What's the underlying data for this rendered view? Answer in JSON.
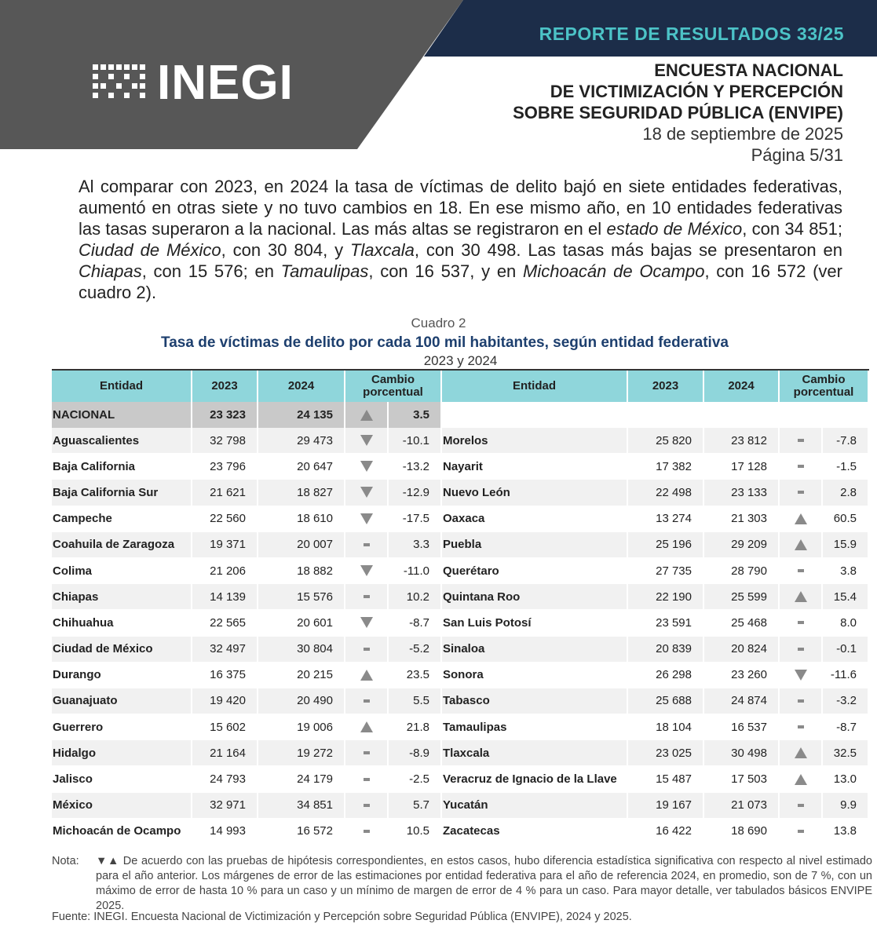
{
  "header": {
    "report": "REPORTE DE RESULTADOS 33/25",
    "logo": "INEGI",
    "survey_lines": [
      "ENCUESTA NACIONAL",
      "DE VICTIMIZACIÓN Y PERCEPCIÓN",
      "SOBRE SEGURIDAD PÚBLICA (ENVIPE)"
    ],
    "date": "18 de septiembre de 2025",
    "page": "Página 5/31"
  },
  "paragraph": {
    "segments": [
      {
        "text": "Al comparar con 2023, en 2024 la tasa de víctimas de delito bajó en siete entidades federativas, aumentó en otras siete y no tuvo cambios en 18. En ese mismo año, en 10 entidades federativas las tasas superaron a la nacional. Las más altas se registraron en el ",
        "italic": false
      },
      {
        "text": "estado de México",
        "italic": true
      },
      {
        "text": ", con 34 851; ",
        "italic": false
      },
      {
        "text": "Ciudad de México",
        "italic": true
      },
      {
        "text": ", con 30 804, y ",
        "italic": false
      },
      {
        "text": "Tlaxcala",
        "italic": true
      },
      {
        "text": ", con 30 498. Las tasas más bajas se presentaron en ",
        "italic": false
      },
      {
        "text": "Chiapas",
        "italic": true
      },
      {
        "text": ", con 15 576; en ",
        "italic": false
      },
      {
        "text": "Tamaulipas",
        "italic": true
      },
      {
        "text": ", con 16 537, y en ",
        "italic": false
      },
      {
        "text": "Michoacán de Ocampo",
        "italic": true
      },
      {
        "text": ", con 16 572 (ver cuadro 2).",
        "italic": false
      }
    ]
  },
  "table": {
    "caption": "Cuadro 2",
    "title": "Tasa de víctimas de delito por cada 100 mil habitantes, según entidad federativa",
    "subtitle": "2023 y 2024",
    "headers": [
      "Entidad",
      "2023",
      "2024",
      "Cambio porcentual"
    ],
    "national": {
      "entity": "NACIONAL",
      "y2023": "23 323",
      "y2024": "24 135",
      "trend": "up",
      "change": "3.5"
    },
    "left_rows": [
      {
        "entity": "Aguascalientes",
        "y2023": "32 798",
        "y2024": "29 473",
        "trend": "down",
        "change": "-10.1"
      },
      {
        "entity": "Baja California",
        "y2023": "23 796",
        "y2024": "20 647",
        "trend": "down",
        "change": "-13.2"
      },
      {
        "entity": "Baja California Sur",
        "y2023": "21 621",
        "y2024": "18 827",
        "trend": "down",
        "change": "-12.9"
      },
      {
        "entity": "Campeche",
        "y2023": "22 560",
        "y2024": "18 610",
        "trend": "down",
        "change": "-17.5"
      },
      {
        "entity": "Coahuila de Zaragoza",
        "y2023": "19 371",
        "y2024": "20 007",
        "trend": "same",
        "change": "3.3"
      },
      {
        "entity": "Colima",
        "y2023": "21 206",
        "y2024": "18 882",
        "trend": "down",
        "change": "-11.0"
      },
      {
        "entity": "Chiapas",
        "y2023": "14 139",
        "y2024": "15 576",
        "trend": "same",
        "change": "10.2"
      },
      {
        "entity": "Chihuahua",
        "y2023": "22 565",
        "y2024": "20 601",
        "trend": "down",
        "change": "-8.7"
      },
      {
        "entity": "Ciudad de México",
        "y2023": "32 497",
        "y2024": "30 804",
        "trend": "same",
        "change": "-5.2"
      },
      {
        "entity": "Durango",
        "y2023": "16 375",
        "y2024": "20 215",
        "trend": "up",
        "change": "23.5"
      },
      {
        "entity": "Guanajuato",
        "y2023": "19 420",
        "y2024": "20 490",
        "trend": "same",
        "change": "5.5"
      },
      {
        "entity": "Guerrero",
        "y2023": "15 602",
        "y2024": "19 006",
        "trend": "up",
        "change": "21.8"
      },
      {
        "entity": "Hidalgo",
        "y2023": "21 164",
        "y2024": "19 272",
        "trend": "same",
        "change": "-8.9"
      },
      {
        "entity": "Jalisco",
        "y2023": "24 793",
        "y2024": "24 179",
        "trend": "same",
        "change": "-2.5"
      },
      {
        "entity": "México",
        "y2023": "32 971",
        "y2024": "34 851",
        "trend": "same",
        "change": "5.7"
      },
      {
        "entity": "Michoacán de Ocampo",
        "y2023": "14 993",
        "y2024": "16 572",
        "trend": "same",
        "change": "10.5"
      }
    ],
    "right_rows": [
      {
        "entity": "Morelos",
        "y2023": "25 820",
        "y2024": "23 812",
        "trend": "same",
        "change": "-7.8"
      },
      {
        "entity": "Nayarit",
        "y2023": "17 382",
        "y2024": "17 128",
        "trend": "same",
        "change": "-1.5"
      },
      {
        "entity": "Nuevo León",
        "y2023": "22 498",
        "y2024": "23 133",
        "trend": "same",
        "change": "2.8"
      },
      {
        "entity": "Oaxaca",
        "y2023": "13 274",
        "y2024": "21 303",
        "trend": "up",
        "change": "60.5"
      },
      {
        "entity": "Puebla",
        "y2023": "25 196",
        "y2024": "29 209",
        "trend": "up",
        "change": "15.9"
      },
      {
        "entity": "Querétaro",
        "y2023": "27 735",
        "y2024": "28 790",
        "trend": "same",
        "change": "3.8"
      },
      {
        "entity": "Quintana Roo",
        "y2023": "22 190",
        "y2024": "25 599",
        "trend": "up",
        "change": "15.4"
      },
      {
        "entity": "San Luis Potosí",
        "y2023": "23 591",
        "y2024": "25 468",
        "trend": "same",
        "change": "8.0"
      },
      {
        "entity": "Sinaloa",
        "y2023": "20 839",
        "y2024": "20 824",
        "trend": "same",
        "change": "-0.1"
      },
      {
        "entity": "Sonora",
        "y2023": "26 298",
        "y2024": "23 260",
        "trend": "down",
        "change": "-11.6"
      },
      {
        "entity": "Tabasco",
        "y2023": "25 688",
        "y2024": "24 874",
        "trend": "same",
        "change": "-3.2"
      },
      {
        "entity": "Tamaulipas",
        "y2023": "18 104",
        "y2024": "16 537",
        "trend": "same",
        "change": "-8.7"
      },
      {
        "entity": "Tlaxcala",
        "y2023": "23 025",
        "y2024": "30 498",
        "trend": "up",
        "change": "32.5"
      },
      {
        "entity": "Veracruz de Ignacio de la Llave",
        "y2023": "15 487",
        "y2024": "17 503",
        "trend": "up",
        "change": "13.0"
      },
      {
        "entity": "Yucatán",
        "y2023": "19 167",
        "y2024": "21 073",
        "trend": "same",
        "change": "9.9"
      },
      {
        "entity": "Zacatecas",
        "y2023": "16 422",
        "y2024": "18 690",
        "trend": "same",
        "change": "13.8"
      }
    ]
  },
  "footer": {
    "note_label": "Nota:",
    "note": "▼▲ De acuerdo con las pruebas de hipótesis correspondientes, en estos casos, hubo diferencia estadística significativa con respecto al nivel estimado para el año anterior. Los márgenes de error de las estimaciones por entidad federativa para el año de referencia 2024, en promedio, son de 7 %, con un máximo de error de hasta 10 % para un caso y un mínimo de margen de error de 4 % para un caso. Para mayor detalle, ver tabulados básicos ENVIPE 2025.",
    "source_label": "Fuente:",
    "source": "INEGI. Encuesta Nacional de Victimización y Percepción sobre Seguridad Pública (ENVIPE), 2024 y 2025."
  }
}
